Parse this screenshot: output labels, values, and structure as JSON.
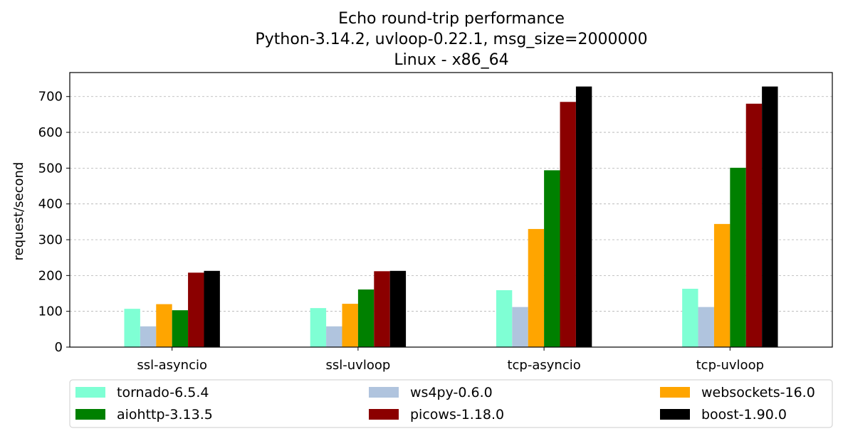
{
  "chart_data": {
    "type": "bar",
    "title_lines": [
      "Echo round-trip performance",
      "Python-3.14.2, uvloop-0.22.1, msg_size=2000000",
      "Linux - x86_64"
    ],
    "xlabel": "",
    "ylabel": "request/second",
    "categories": [
      "ssl-asyncio",
      "ssl-uvloop",
      "tcp-asyncio",
      "tcp-uvloop"
    ],
    "ylim": [
      0,
      767
    ],
    "yticks": [
      0,
      100,
      200,
      300,
      400,
      500,
      600,
      700
    ],
    "grid": "y-dashed",
    "legend_position": "bottom",
    "series": [
      {
        "name": "tornado-6.5.4",
        "color": "#7fffd4",
        "values": [
          107,
          109,
          159,
          163
        ]
      },
      {
        "name": "ws4py-0.6.0",
        "color": "#b0c4de",
        "values": [
          58,
          58,
          112,
          112
        ]
      },
      {
        "name": "websockets-16.0",
        "color": "#ffa500",
        "values": [
          120,
          121,
          330,
          344
        ]
      },
      {
        "name": "aiohttp-3.13.5",
        "color": "#008000",
        "values": [
          103,
          161,
          494,
          501
        ]
      },
      {
        "name": "picows-1.18.0",
        "color": "#8b0000",
        "values": [
          208,
          212,
          685,
          680
        ]
      },
      {
        "name": "boost-1.90.0",
        "color": "#000000",
        "values": [
          213,
          213,
          728,
          728
        ]
      }
    ]
  }
}
